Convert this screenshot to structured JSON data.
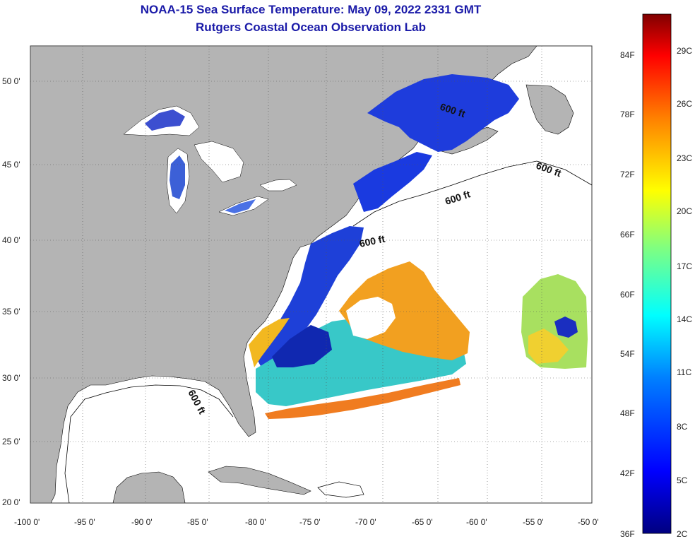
{
  "header": {
    "title": "NOAA-15 Sea Surface Temperature:  May 09, 2022 2331 GMT",
    "subtitle": "Rutgers Coastal Ocean Observation Lab"
  },
  "map": {
    "lon_range": [
      -100,
      -50
    ],
    "lat_range": [
      20,
      52.5
    ],
    "lon_ticks": [
      "-100 0'",
      "-95 0'",
      "-90 0'",
      "-85 0'",
      "-80 0'",
      "-75 0'",
      "-70 0'",
      "-65 0'",
      "-60 0'",
      "-55 0'",
      "-50 0'"
    ],
    "lat_ticks": [
      "20 0'",
      "25 0'",
      "30 0'",
      "35 0'",
      "40 0'",
      "45 0'",
      "50 0'"
    ],
    "grid": "dotted",
    "land_color": "#b4b4b4",
    "ocean_color": "#ffffff",
    "contour_labels": [
      "600 ft",
      "600 ft",
      "600 ft",
      "600 ft",
      "600 ft"
    ]
  },
  "colorbar": {
    "fahrenheit_labels": [
      "84F",
      "78F",
      "72F",
      "66F",
      "60F",
      "54F",
      "48F",
      "42F",
      "36F"
    ],
    "celsius_labels": [
      "29C",
      "26C",
      "23C",
      "20C",
      "17C",
      "14C",
      "11C",
      "8C",
      "5C",
      "2C"
    ],
    "colors": [
      "#000080",
      "#0000ff",
      "#0080ff",
      "#00ffff",
      "#80ff80",
      "#ffff00",
      "#ff8000",
      "#ff0000",
      "#800000"
    ]
  }
}
